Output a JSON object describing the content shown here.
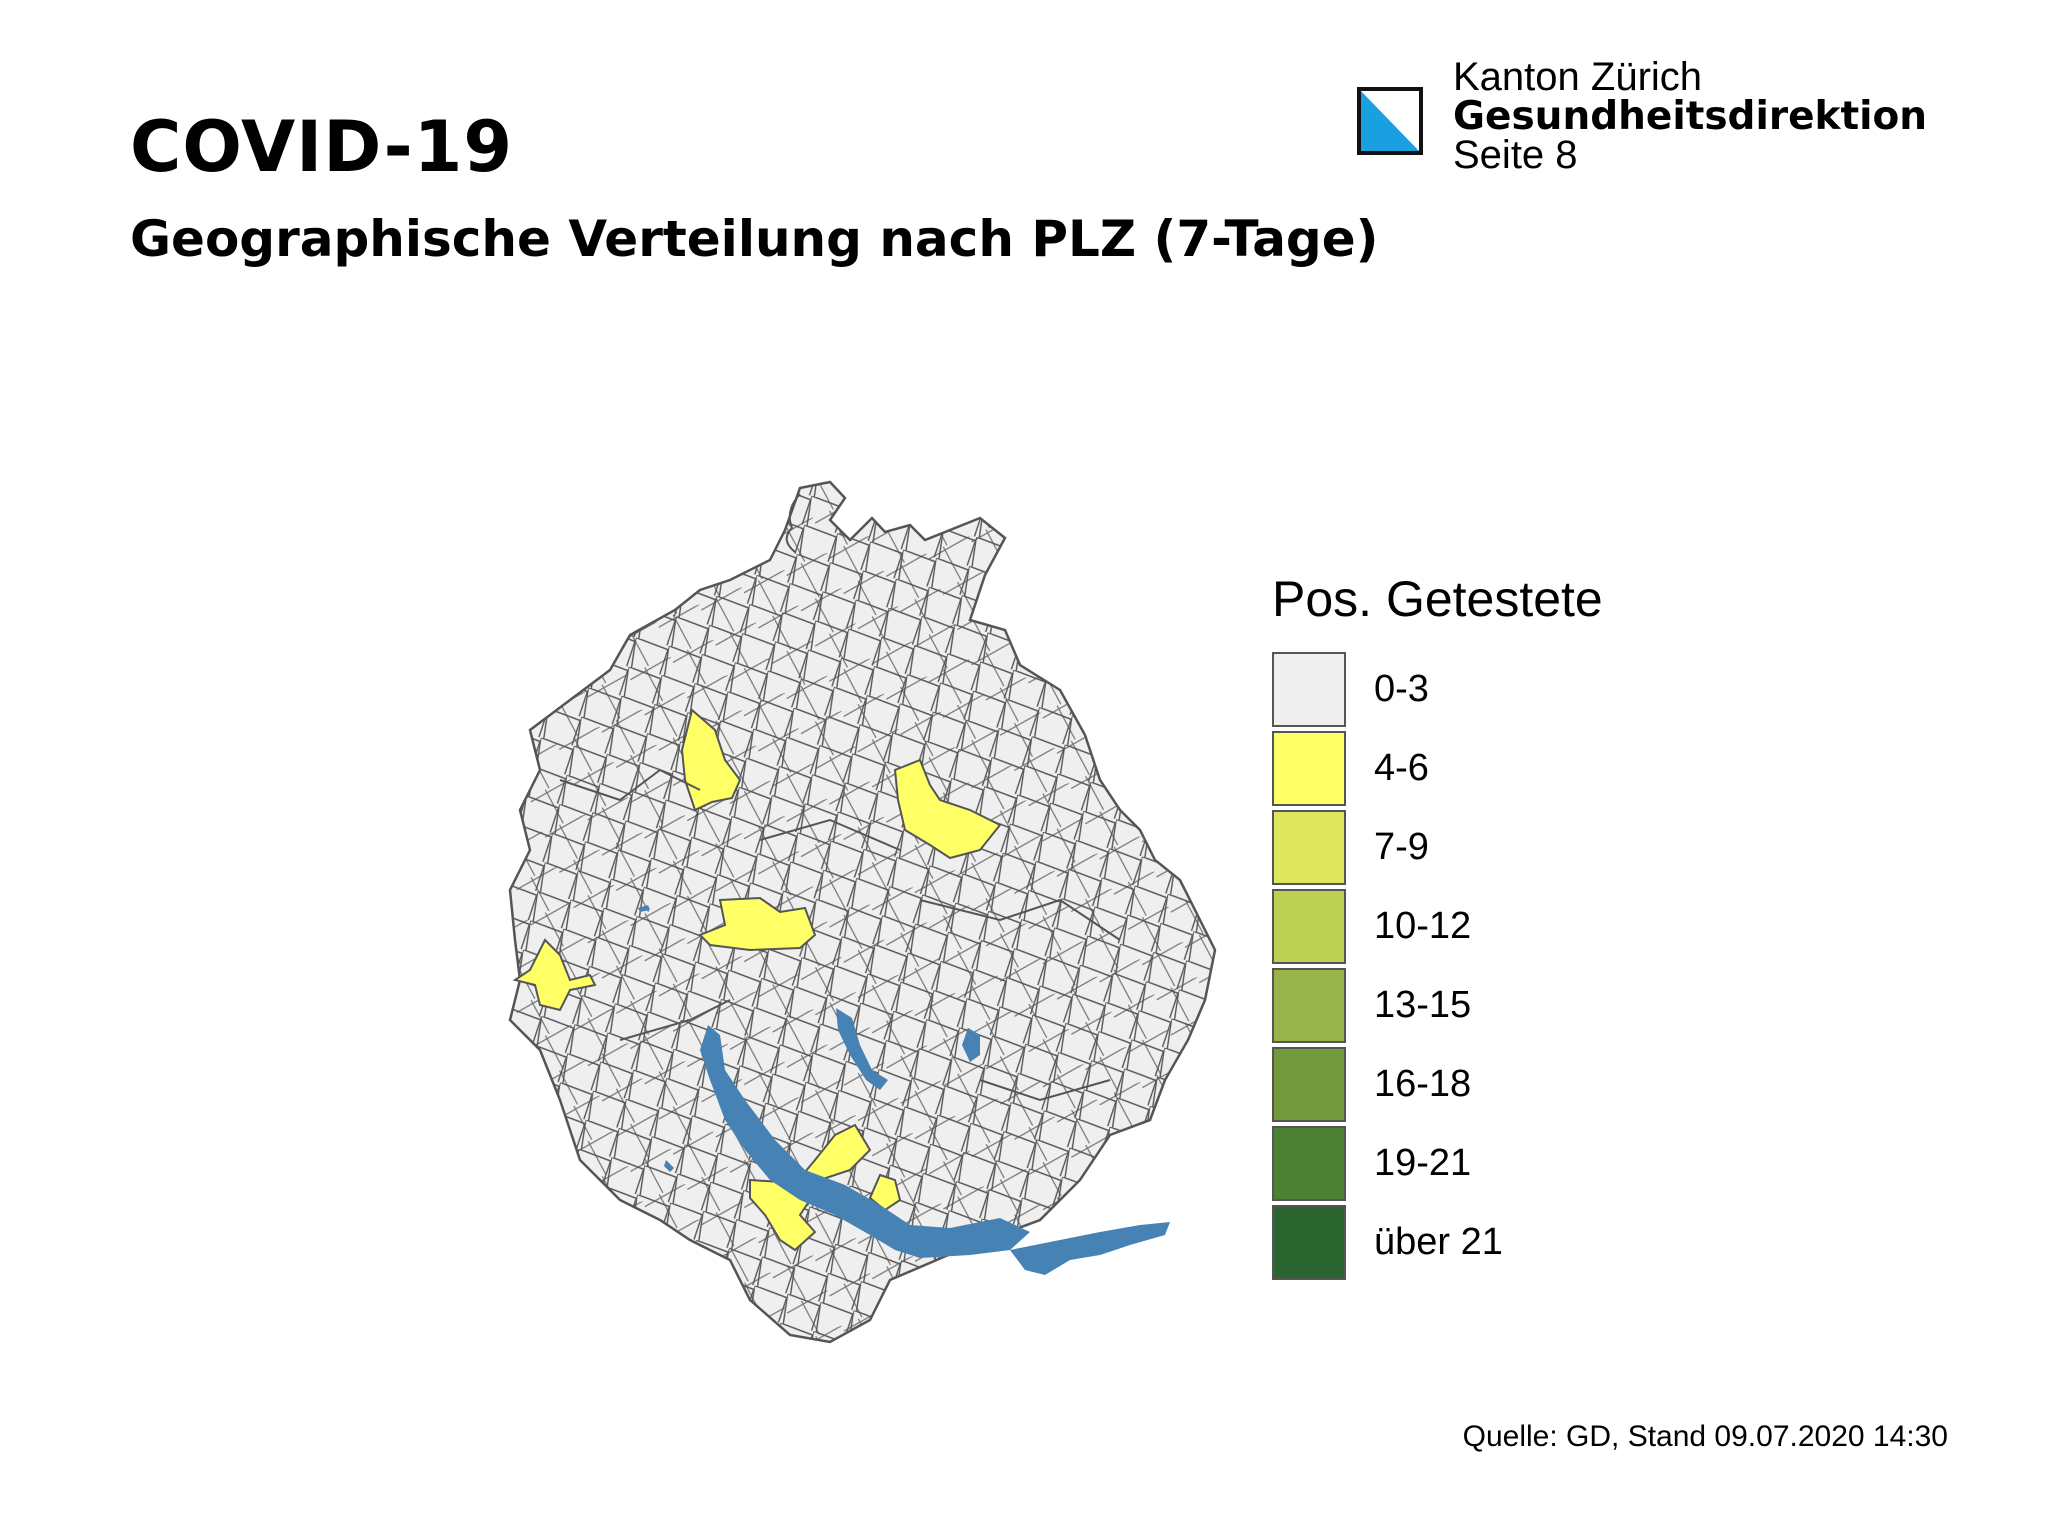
{
  "header": {
    "title": "COVID-19",
    "subtitle": "Geographische Verteilung nach PLZ (7-Tage)"
  },
  "organization": {
    "canton": "Kanton Zürich",
    "department": "Gesundheitsdirektion",
    "page": "Seite 8"
  },
  "legend": {
    "title": "Pos. Getestete",
    "items": [
      {
        "label": "0-3",
        "color": "#efefef"
      },
      {
        "label": "4-6",
        "color": "#ffff66"
      },
      {
        "label": "7-9",
        "color": "#dde65c"
      },
      {
        "label": "10-12",
        "color": "#bcd152"
      },
      {
        "label": "13-15",
        "color": "#97b44a"
      },
      {
        "label": "16-18",
        "color": "#729a3d"
      },
      {
        "label": "19-21",
        "color": "#4c8033"
      },
      {
        "label": "über 21",
        "color": "#2a6530"
      }
    ]
  },
  "map": {
    "base_color": "#efefef",
    "highlight_color": "#ffff66",
    "lake_color": "#4682b4",
    "border_color": "#555555"
  },
  "footer": {
    "source": "Quelle: GD, Stand 09.07.2020 14:30"
  }
}
